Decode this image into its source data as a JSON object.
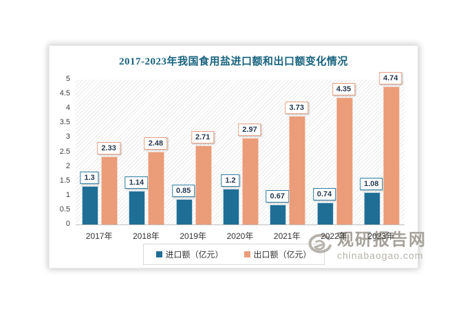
{
  "chart_data": {
    "type": "bar",
    "title": "2017-2023年我国食用盐进口额和出口额变化情况",
    "title_color": "#17637E",
    "categories": [
      "2017年",
      "2018年",
      "2019年",
      "2020年",
      "2021年",
      "2022年",
      "2023年"
    ],
    "series": [
      {
        "name": "进口额（亿元）",
        "color": "#1F6E96",
        "label_border": "#2E7EA2",
        "values": [
          1.3,
          1.14,
          0.85,
          1.2,
          0.67,
          0.74,
          1.08
        ],
        "labels": [
          "1.3",
          "1.14",
          "0.85",
          "1.2",
          "0.67",
          "0.74",
          "1.08"
        ]
      },
      {
        "name": "出口额（亿元）",
        "color": "#EB9C79",
        "label_border": "#E9A183",
        "values": [
          2.33,
          2.48,
          2.71,
          2.97,
          3.73,
          4.35,
          4.74
        ],
        "labels": [
          "2.33",
          "2.48",
          "2.71",
          "2.97",
          "3.73",
          "4.35",
          "4.74"
        ]
      }
    ],
    "ylim": [
      0,
      5
    ],
    "yticks": [
      "0",
      "0.5",
      "1",
      "1.5",
      "2",
      "2.5",
      "3",
      "3.5",
      "4",
      "4.5",
      "5"
    ],
    "grid": false,
    "plot_background": "diagonal-hatch",
    "legend_position": "bottom"
  },
  "watermark": {
    "brand": "观研报告网",
    "domain": "chinabaogao.com"
  }
}
